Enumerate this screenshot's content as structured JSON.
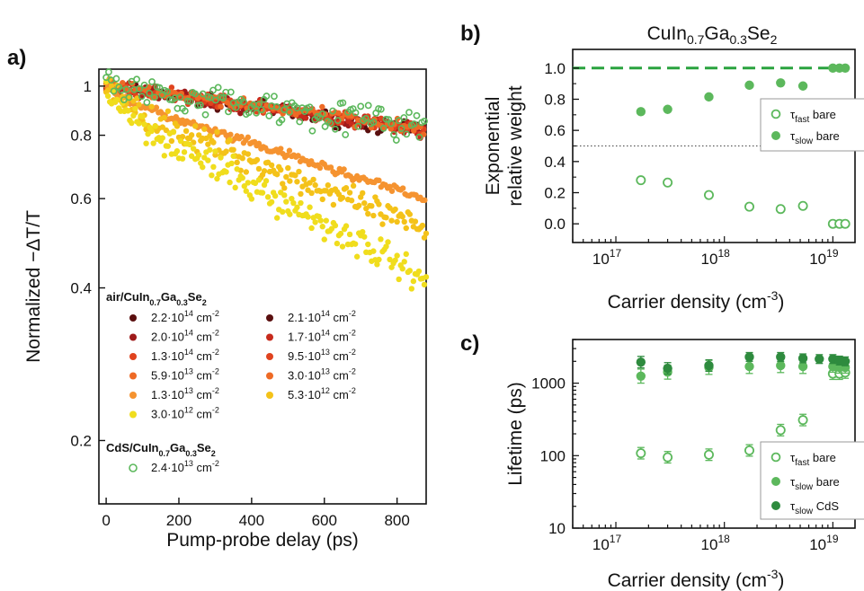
{
  "colors": {
    "dark_red": "#5a0f0f",
    "red1": "#9e1a1a",
    "red2": "#c72a1c",
    "red3": "#e0431f",
    "orange1": "#ee6a25",
    "orange2": "#f59330",
    "yellow1": "#f4c219",
    "yellow2": "#f0dd1d",
    "green": "#5cb85c",
    "dark_green": "#2e8b3e",
    "dash_green": "#2aa33f"
  },
  "panels": {
    "a": {
      "label": "a)"
    },
    "b": {
      "label": "b)",
      "title": {
        "base": "CuIn",
        "s1": "0.7",
        "mid": "Ga",
        "s2": "0.3",
        "end": "Se",
        "s3": "2"
      }
    },
    "c": {
      "label": "c)"
    }
  },
  "chart_data": [
    {
      "panel": "a",
      "type": "scatter",
      "xlabel": "Pump-probe delay (ps)",
      "ylabel": "Normalized −ΔT/T",
      "xlim": [
        -20,
        880
      ],
      "ylim": [
        0.15,
        1.08
      ],
      "yscale": "log",
      "xticks": [
        0,
        200,
        400,
        600,
        800
      ],
      "yticks": [
        0.2,
        0.4,
        0.6,
        0.8,
        1
      ],
      "legend_groups": [
        {
          "title": {
            "base": "air/CuIn",
            "s1": "0.7",
            "mid": "Ga",
            "s2": "0.3",
            "end": "Se",
            "s3": "2"
          },
          "entries": [
            {
              "name": "2.2·10",
              "exp": "14",
              "unit": " cm",
              "uexp": "-2",
              "color": "dark_red",
              "filled": true
            },
            {
              "name": "2.1·10",
              "exp": "14",
              "unit": " cm",
              "uexp": "-2",
              "color": "dark_red",
              "filled": true
            },
            {
              "name": "2.0·10",
              "exp": "14",
              "unit": " cm",
              "uexp": "-2",
              "color": "red1",
              "filled": true
            },
            {
              "name": "1.7·10",
              "exp": "14",
              "unit": " cm",
              "uexp": "-2",
              "color": "red2",
              "filled": true
            },
            {
              "name": "1.3·10",
              "exp": "14",
              "unit": " cm",
              "uexp": "-2",
              "color": "red3",
              "filled": true
            },
            {
              "name": "9.5·10",
              "exp": "13",
              "unit": " cm",
              "uexp": "-2",
              "color": "red3",
              "filled": true
            },
            {
              "name": "5.9·10",
              "exp": "13",
              "unit": " cm",
              "uexp": "-2",
              "color": "orange1",
              "filled": true
            },
            {
              "name": "3.0·10",
              "exp": "13",
              "unit": " cm",
              "uexp": "-2",
              "color": "orange1",
              "filled": true
            },
            {
              "name": "1.3·10",
              "exp": "13",
              "unit": " cm",
              "uexp": "-2",
              "color": "orange2",
              "filled": true
            },
            {
              "name": "5.3·10",
              "exp": "12",
              "unit": " cm",
              "uexp": "-2",
              "color": "yellow1",
              "filled": true
            },
            {
              "name": "3.0·10",
              "exp": "12",
              "unit": " cm",
              "uexp": "-2",
              "color": "yellow2",
              "filled": true
            }
          ]
        },
        {
          "title": {
            "base": "CdS/CuIn",
            "s1": "0.7",
            "mid": "Ga",
            "s2": "0.3",
            "end": "Se",
            "s3": "2"
          },
          "entries": [
            {
              "name": "2.4·10",
              "exp": "13",
              "unit": " cm",
              "uexp": "-2",
              "color": "green",
              "filled": false
            }
          ]
        }
      ],
      "curves": [
        {
          "color": "dark_red",
          "tau1": 4200,
          "a1": 1.0,
          "noise": 0.015,
          "step": 9
        },
        {
          "color": "red1",
          "tau1": 4300,
          "a1": 1.0,
          "noise": 0.015,
          "step": 9
        },
        {
          "color": "red2",
          "tau1": 4400,
          "a1": 1.0,
          "noise": 0.015,
          "step": 9
        },
        {
          "color": "red3",
          "tau1": 4500,
          "a1": 1.0,
          "noise": 0.015,
          "step": 9
        },
        {
          "color": "orange1",
          "tau1": 4600,
          "a1": 1.0,
          "noise": 0.015,
          "step": 9
        },
        {
          "color": "orange2",
          "tau1": 1900,
          "a1": 0.95,
          "noise": 0.01,
          "step": 6
        },
        {
          "color": "yellow1",
          "tau1": 1500,
          "a1": 0.93,
          "noise": 0.03,
          "step": 5
        },
        {
          "color": "yellow2",
          "tau1": 1150,
          "a1": 0.9,
          "noise": 0.035,
          "step": 5
        },
        {
          "color": "green",
          "tau1": 4800,
          "a1": 1.0,
          "noise": 0.035,
          "step": 7,
          "open": true
        }
      ]
    },
    {
      "panel": "b",
      "type": "scatter",
      "xlabel": "Carrier density (cm",
      "xlabel_exp": "-3",
      "xlabel_end": ")",
      "ylabel_lines": [
        "Exponential",
        "relative weight"
      ],
      "xscale": "log",
      "xlim": [
        4e+16,
        1.6e+19
      ],
      "ylim": [
        -0.12,
        1.12
      ],
      "yticks": [
        "0.0",
        "0.2",
        "0.4",
        "0.6",
        "0.8",
        "1.0"
      ],
      "xticks": [
        {
          "base": "10",
          "exp": "17"
        },
        {
          "base": "10",
          "exp": "18"
        },
        {
          "base": "10",
          "exp": "19"
        }
      ],
      "hline_dashed": 1.0,
      "hline_dotted": 0.5,
      "series": [
        {
          "name_base": "τ",
          "name_sub": "fast",
          "name_end": " bare",
          "filled": false,
          "color": "green",
          "x": [
            1.7e+17,
            3e+17,
            7.2e+17,
            1.7e+18,
            3.3e+18,
            5.3e+18,
            1e+19,
            1.15e+19,
            1.3e+19
          ],
          "y": [
            0.28,
            0.265,
            0.185,
            0.11,
            0.095,
            0.115,
            0.0,
            0.0,
            0.0
          ]
        },
        {
          "name_base": "τ",
          "name_sub": "slow",
          "name_end": " bare",
          "filled": true,
          "color": "green",
          "x": [
            1.7e+17,
            3e+17,
            7.2e+17,
            1.7e+18,
            3.3e+18,
            5.3e+18,
            1e+19,
            1.15e+19,
            1.3e+19
          ],
          "y": [
            0.72,
            0.735,
            0.815,
            0.89,
            0.905,
            0.885,
            1.0,
            1.0,
            1.0
          ]
        }
      ]
    },
    {
      "panel": "c",
      "type": "scatter",
      "xlabel": "Carrier density (cm",
      "xlabel_exp": "-3",
      "xlabel_end": ")",
      "ylabel": "Lifetime (ps)",
      "xscale": "log",
      "yscale": "log",
      "xlim": [
        4e+16,
        1.6e+19
      ],
      "ylim": [
        10,
        4000
      ],
      "yticks": [
        "10",
        "100",
        "1000"
      ],
      "xticks": [
        {
          "base": "10",
          "exp": "17"
        },
        {
          "base": "10",
          "exp": "18"
        },
        {
          "base": "10",
          "exp": "19"
        }
      ],
      "series": [
        {
          "name_base": "τ",
          "name_sub": "fast",
          "name_end": " bare",
          "filled": false,
          "color": "green",
          "x": [
            1.7e+17,
            3e+17,
            7.2e+17,
            1.7e+18,
            3.3e+18,
            5.3e+18,
            1e+19,
            1.15e+19,
            1.3e+19
          ],
          "y": [
            108,
            95,
            103,
            118,
            225,
            310,
            1350,
            1350,
            1400
          ],
          "err": [
            0.2,
            0.2,
            0.2,
            0.2,
            0.2,
            0.2,
            0.2,
            0.2,
            0.2
          ]
        },
        {
          "name_base": "τ",
          "name_sub": "slow",
          "name_end": " bare",
          "filled": true,
          "color": "green",
          "x": [
            1.7e+17,
            3e+17,
            7.2e+17,
            1.7e+18,
            3.3e+18,
            5.3e+18,
            1e+19,
            1.15e+19,
            1.3e+19
          ],
          "y": [
            1250,
            1420,
            1650,
            1700,
            1750,
            1700,
            1700,
            1650,
            1650
          ],
          "err": [
            0.25,
            0.25,
            0.25,
            0.25,
            0.25,
            0.25,
            0.2,
            0.2,
            0.2
          ]
        },
        {
          "name_base": "τ",
          "name_sub": "slow",
          "name_end": " CdS",
          "filled": true,
          "color": "dark_green",
          "x": [
            1.7e+17,
            3e+17,
            7.2e+17,
            1.7e+18,
            3.3e+18,
            5.3e+18,
            7.5e+18,
            1e+19,
            1.15e+19,
            1.3e+19
          ],
          "y": [
            1950,
            1600,
            1750,
            2300,
            2300,
            2200,
            2150,
            2150,
            2050,
            2000
          ],
          "err": [
            0.2,
            0.2,
            0.2,
            0.15,
            0.15,
            0.15,
            0.15,
            0.15,
            0.15,
            0.15
          ]
        }
      ]
    }
  ]
}
